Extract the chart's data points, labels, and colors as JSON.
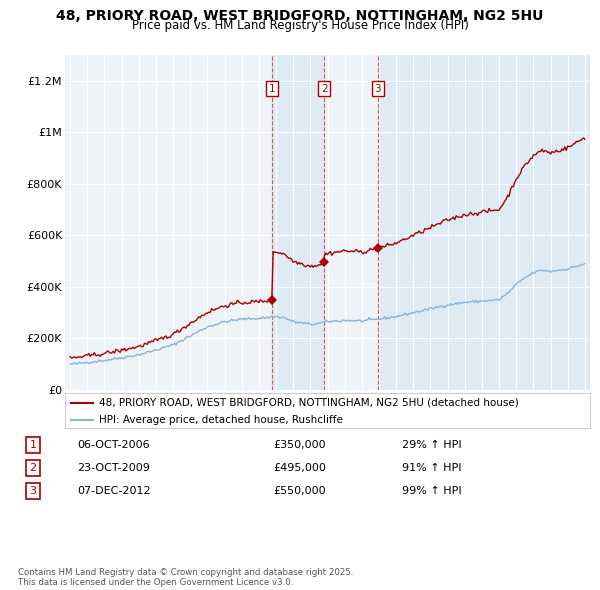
{
  "title_line1": "48, PRIORY ROAD, WEST BRIDGFORD, NOTTINGHAM, NG2 5HU",
  "title_line2": "Price paid vs. HM Land Registry's House Price Index (HPI)",
  "ylim": [
    0,
    1300000
  ],
  "yticks": [
    0,
    200000,
    400000,
    600000,
    800000,
    1000000,
    1200000
  ],
  "ytick_labels": [
    "£0",
    "£200K",
    "£400K",
    "£600K",
    "£800K",
    "£1M",
    "£1.2M"
  ],
  "background_color": "#ffffff",
  "plot_bg_color": "#eef3f8",
  "grid_color": "#ffffff",
  "sale_color": "#aa0000",
  "hpi_color": "#88b4d8",
  "shade_color": "#d8e8f4",
  "sale_labels": [
    "1",
    "2",
    "3"
  ],
  "sale_year_dec": [
    2006.75,
    2009.8,
    2012.92
  ],
  "sale_prices": [
    350000,
    495000,
    550000
  ],
  "annotation_data": [
    {
      "label": "1",
      "date": "06-OCT-2006",
      "price": "£350,000",
      "hpi_pct": "29% ↑ HPI"
    },
    {
      "label": "2",
      "date": "23-OCT-2009",
      "price": "£495,000",
      "hpi_pct": "91% ↑ HPI"
    },
    {
      "label": "3",
      "date": "07-DEC-2012",
      "price": "£550,000",
      "hpi_pct": "99% ↑ HPI"
    }
  ],
  "legend_line1": "48, PRIORY ROAD, WEST BRIDGFORD, NOTTINGHAM, NG2 5HU (detached house)",
  "legend_line2": "HPI: Average price, detached house, Rushcliffe",
  "footnote": "Contains HM Land Registry data © Crown copyright and database right 2025.\nThis data is licensed under the Open Government Licence v3.0.",
  "xstart_year": 1995,
  "xend_year": 2025
}
